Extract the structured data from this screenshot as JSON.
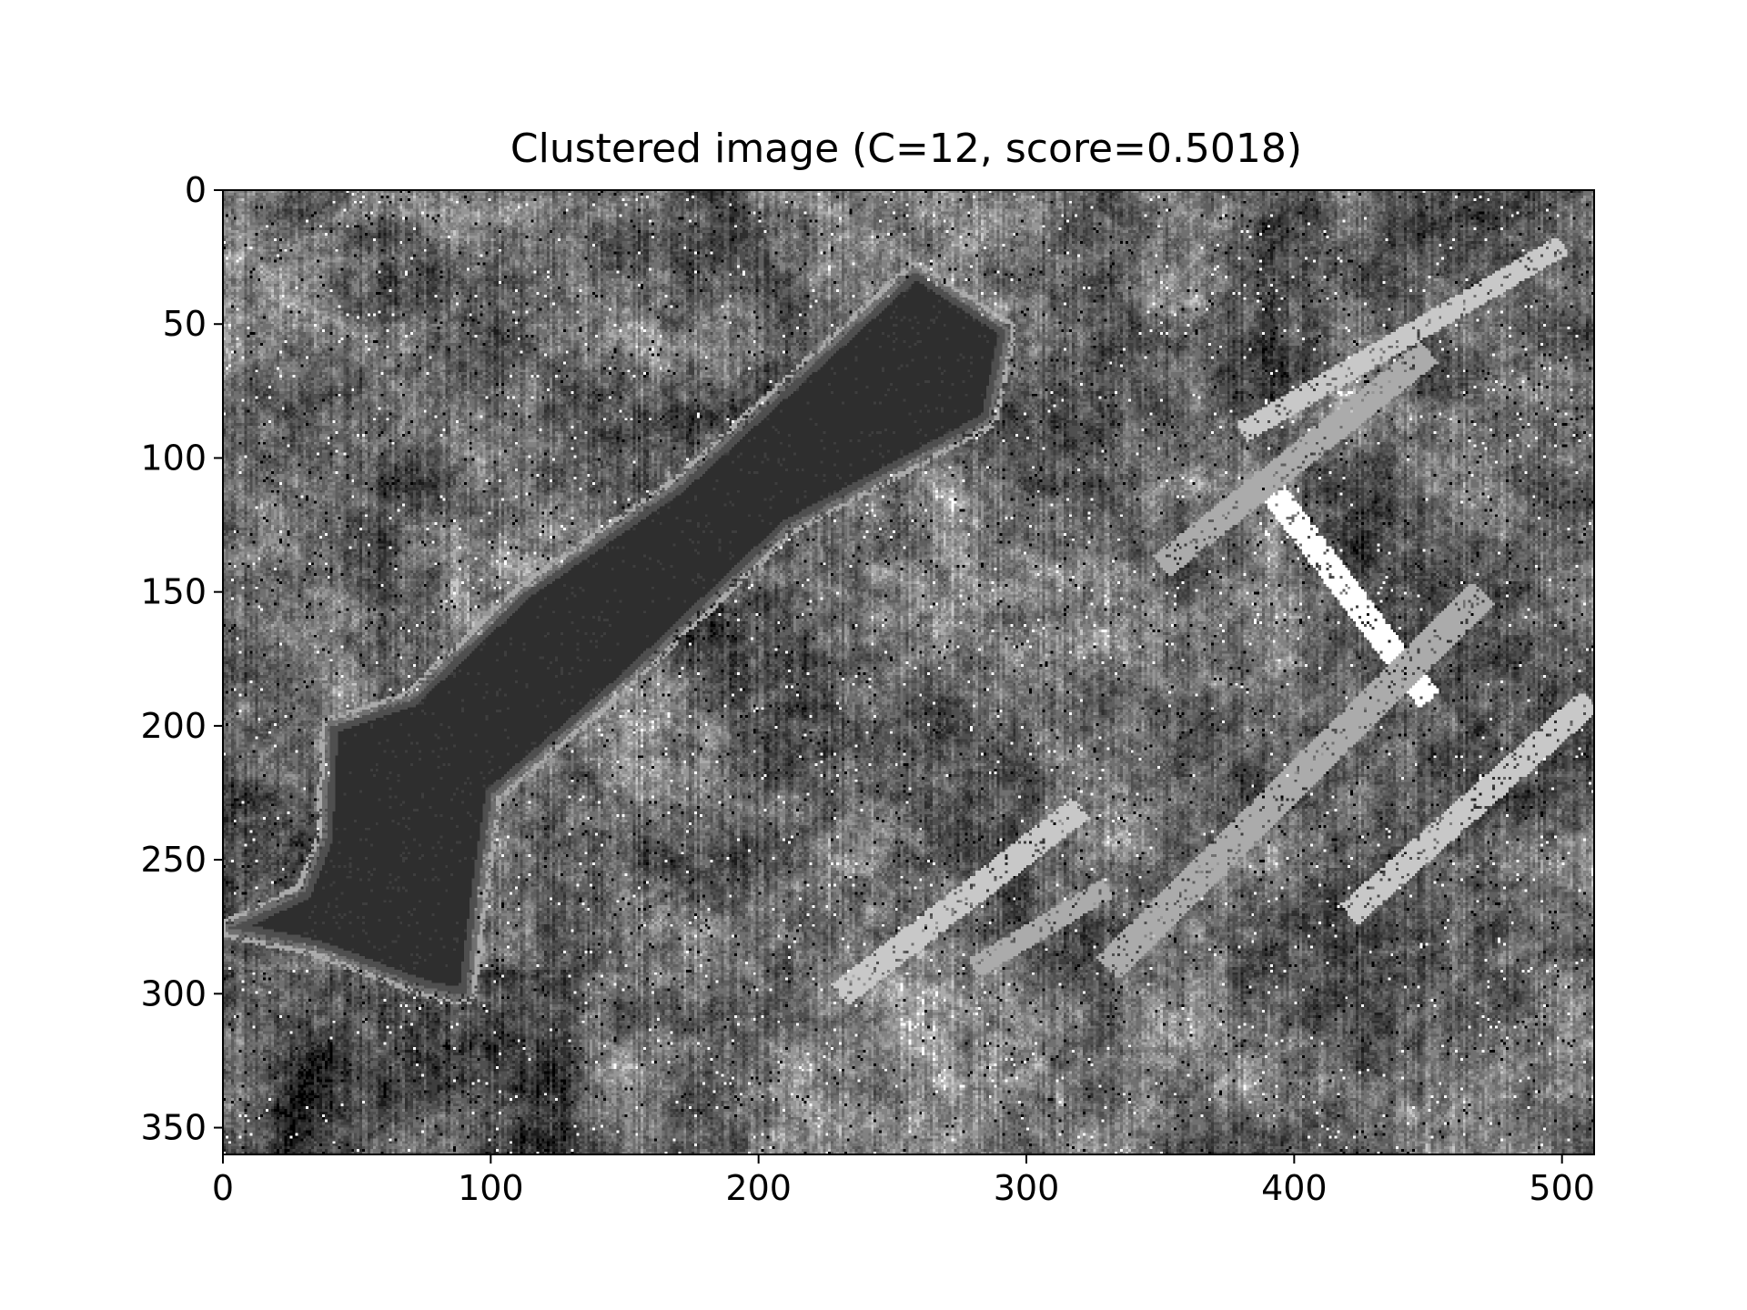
{
  "chart_data": {
    "type": "heatmap",
    "title": "Clustered image (C=12, score=0.5018)",
    "xlabel": "",
    "ylabel": "",
    "image_width": 512,
    "image_height": 360,
    "xlim": [
      0,
      512
    ],
    "ylim": [
      360,
      0
    ],
    "x_ticks": [
      0,
      100,
      200,
      300,
      400,
      500
    ],
    "y_ticks": [
      0,
      50,
      100,
      150,
      200,
      250,
      300,
      350
    ],
    "x_tick_labels": [
      "0",
      "100",
      "200",
      "300",
      "400",
      "500"
    ],
    "y_tick_labels": [
      "0",
      "50",
      "100",
      "150",
      "200",
      "250",
      "300",
      "350"
    ],
    "grid": false,
    "colormap": "gray",
    "cluster_count": 12,
    "palette": [
      "#000000",
      "#1a1a1a",
      "#2e2e2e",
      "#3e3e3e",
      "#4f4f4f",
      "#5f5f5f",
      "#707070",
      "#828282",
      "#969696",
      "#ababab",
      "#c8c8c8",
      "#ffffff"
    ]
  }
}
